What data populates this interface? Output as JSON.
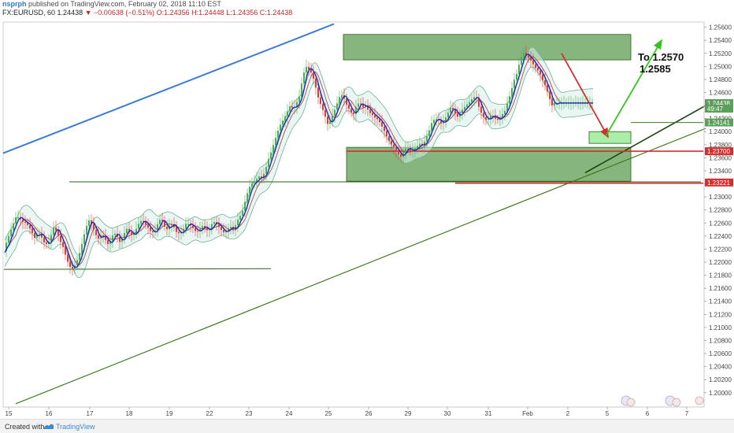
{
  "header": {
    "username": "nsprph",
    "published": "published on TradingView.com, February 02, 2018 11:10 EST",
    "symbol": "FX:EURUSD, 60",
    "last": "1.24438",
    "change": "−0.00638 (−0.51%)",
    "ohlc": "O:1.24356 H:1.24448 L:1.24356 C:1.24438"
  },
  "footer": {
    "created_with": "Created with",
    "brand": "TradingView"
  },
  "chart_data": {
    "type": "candlestick",
    "symbol": "FX:EURUSD",
    "interval": "60",
    "ylim": [
      1.1978,
      1.2568
    ],
    "y_ticks": [
      "1.25600",
      "1.25400",
      "1.25200",
      "1.25000",
      "1.24800",
      "1.24600",
      "1.24400",
      "1.24200",
      "1.24000",
      "1.23800",
      "1.23600",
      "1.23400",
      "1.23200",
      "1.23000",
      "1.22800",
      "1.22600",
      "1.22400",
      "1.22200",
      "1.22000",
      "1.21800",
      "1.21600",
      "1.21400",
      "1.21200",
      "1.21000",
      "1.20800",
      "1.20600",
      "1.20400",
      "1.20200",
      "1.20000"
    ],
    "x_ticks": [
      "15",
      "16",
      "17",
      "18",
      "19",
      "22",
      "23",
      "24",
      "25",
      "26",
      "29",
      "30",
      "31",
      "Feb",
      "2",
      "5",
      "6",
      "7"
    ],
    "price_labels": [
      {
        "text": "1.24438",
        "value": 1.24438,
        "color": "#5c9e5c"
      },
      {
        "text": "49:47",
        "value": 1.24353,
        "color": "#5c9e5c"
      },
      {
        "text": "1.24141",
        "value": 1.24141,
        "color": "#5c9e5c"
      },
      {
        "text": "1.23700",
        "value": 1.237,
        "color": "#d32f2f"
      },
      {
        "text": "1.23221",
        "value": 1.23221,
        "color": "#d32f2f"
      }
    ],
    "annotations": [
      "To 1.2570",
      "1.2585"
    ],
    "price_path": [
      [
        0,
        1.2192
      ],
      [
        6,
        1.2215
      ],
      [
        10,
        1.2232
      ],
      [
        14,
        1.2245
      ],
      [
        18,
        1.2258
      ],
      [
        22,
        1.227
      ],
      [
        26,
        1.2268
      ],
      [
        30,
        1.2262
      ],
      [
        34,
        1.226
      ],
      [
        38,
        1.2255
      ],
      [
        42,
        1.2246
      ],
      [
        46,
        1.2236
      ],
      [
        50,
        1.2247
      ],
      [
        54,
        1.2239
      ],
      [
        58,
        1.2229
      ],
      [
        62,
        1.2227
      ],
      [
        66,
        1.224
      ],
      [
        70,
        1.2255
      ],
      [
        74,
        1.2245
      ],
      [
        78,
        1.2232
      ],
      [
        82,
        1.2222
      ],
      [
        86,
        1.2205
      ],
      [
        90,
        1.2193
      ],
      [
        94,
        1.219
      ],
      [
        98,
        1.2198
      ],
      [
        102,
        1.2212
      ],
      [
        106,
        1.223
      ],
      [
        110,
        1.225
      ],
      [
        114,
        1.2265
      ],
      [
        118,
        1.2258
      ],
      [
        122,
        1.2245
      ],
      [
        126,
        1.2235
      ],
      [
        130,
        1.2242
      ],
      [
        134,
        1.2238
      ],
      [
        138,
        1.2227
      ],
      [
        142,
        1.2233
      ],
      [
        146,
        1.2246
      ],
      [
        150,
        1.224
      ],
      [
        154,
        1.223
      ],
      [
        158,
        1.224
      ],
      [
        162,
        1.2252
      ],
      [
        166,
        1.2245
      ],
      [
        170,
        1.224
      ],
      [
        174,
        1.225
      ],
      [
        178,
        1.226
      ],
      [
        182,
        1.2265
      ],
      [
        186,
        1.2258
      ],
      [
        190,
        1.2252
      ],
      [
        194,
        1.2245
      ],
      [
        198,
        1.2247
      ],
      [
        202,
        1.226
      ],
      [
        206,
        1.2268
      ],
      [
        210,
        1.2255
      ],
      [
        214,
        1.225
      ],
      [
        218,
        1.226
      ],
      [
        222,
        1.2255
      ],
      [
        226,
        1.2245
      ],
      [
        230,
        1.2244
      ],
      [
        234,
        1.225
      ],
      [
        238,
        1.226
      ],
      [
        242,
        1.2258
      ],
      [
        246,
        1.2253
      ],
      [
        250,
        1.2247
      ],
      [
        254,
        1.2248
      ],
      [
        258,
        1.2256
      ],
      [
        262,
        1.2252
      ],
      [
        266,
        1.2247
      ],
      [
        270,
        1.2258
      ],
      [
        274,
        1.2262
      ],
      [
        278,
        1.2256
      ],
      [
        282,
        1.225
      ],
      [
        286,
        1.2245
      ],
      [
        290,
        1.225
      ],
      [
        294,
        1.2255
      ],
      [
        298,
        1.2248
      ],
      [
        302,
        1.2262
      ],
      [
        306,
        1.227
      ],
      [
        310,
        1.228
      ],
      [
        314,
        1.23
      ],
      [
        318,
        1.2315
      ],
      [
        322,
        1.2322
      ],
      [
        326,
        1.2325
      ],
      [
        330,
        1.2332
      ],
      [
        334,
        1.2328
      ],
      [
        338,
        1.234
      ],
      [
        342,
        1.2356
      ],
      [
        346,
        1.237
      ],
      [
        350,
        1.2385
      ],
      [
        354,
        1.24
      ],
      [
        358,
        1.2412
      ],
      [
        362,
        1.242
      ],
      [
        366,
        1.243
      ],
      [
        370,
        1.244
      ],
      [
        374,
        1.2435
      ],
      [
        378,
        1.2444
      ],
      [
        382,
        1.2455
      ],
      [
        386,
        1.2485
      ],
      [
        390,
        1.25
      ],
      [
        394,
        1.2495
      ],
      [
        398,
        1.2488
      ],
      [
        402,
        1.247
      ],
      [
        406,
        1.245
      ],
      [
        410,
        1.2438
      ],
      [
        414,
        1.2425
      ],
      [
        418,
        1.241
      ],
      [
        422,
        1.242
      ],
      [
        426,
        1.2432
      ],
      [
        430,
        1.2445
      ],
      [
        434,
        1.2458
      ],
      [
        438,
        1.2452
      ],
      [
        442,
        1.244
      ],
      [
        446,
        1.2432
      ],
      [
        450,
        1.2425
      ],
      [
        454,
        1.244
      ],
      [
        458,
        1.2445
      ],
      [
        462,
        1.2437
      ],
      [
        466,
        1.244
      ],
      [
        470,
        1.243
      ],
      [
        474,
        1.2426
      ],
      [
        478,
        1.2421
      ],
      [
        482,
        1.2418
      ],
      [
        486,
        1.2409
      ],
      [
        490,
        1.24
      ],
      [
        494,
        1.2389
      ],
      [
        498,
        1.2381
      ],
      [
        502,
        1.2375
      ],
      [
        506,
        1.2368
      ],
      [
        510,
        1.236
      ],
      [
        514,
        1.237
      ],
      [
        518,
        1.2377
      ],
      [
        522,
        1.237
      ],
      [
        526,
        1.2372
      ],
      [
        530,
        1.2376
      ],
      [
        534,
        1.2382
      ],
      [
        538,
        1.2378
      ],
      [
        542,
        1.2389
      ],
      [
        546,
        1.24
      ],
      [
        550,
        1.2415
      ],
      [
        554,
        1.242
      ],
      [
        558,
        1.2418
      ],
      [
        562,
        1.2412
      ],
      [
        566,
        1.2418
      ],
      [
        570,
        1.2428
      ],
      [
        574,
        1.2438
      ],
      [
        578,
        1.2431
      ],
      [
        582,
        1.2422
      ],
      [
        586,
        1.243
      ],
      [
        590,
        1.2436
      ],
      [
        594,
        1.2441
      ],
      [
        598,
        1.2446
      ],
      [
        602,
        1.2452
      ],
      [
        606,
        1.2454
      ],
      [
        610,
        1.2436
      ],
      [
        614,
        1.2425
      ],
      [
        618,
        1.2418
      ],
      [
        622,
        1.242
      ],
      [
        626,
        1.2427
      ],
      [
        630,
        1.242
      ],
      [
        634,
        1.2418
      ],
      [
        638,
        1.2425
      ],
      [
        642,
        1.243
      ],
      [
        646,
        1.2445
      ],
      [
        650,
        1.246
      ],
      [
        654,
        1.2478
      ],
      [
        658,
        1.249
      ],
      [
        662,
        1.251
      ],
      [
        666,
        1.2522
      ],
      [
        670,
        1.2516
      ],
      [
        674,
        1.2512
      ],
      [
        678,
        1.2504
      ],
      [
        682,
        1.2497
      ],
      [
        686,
        1.2492
      ],
      [
        690,
        1.248
      ],
      [
        694,
        1.247
      ],
      [
        698,
        1.2456
      ],
      [
        702,
        1.244
      ],
      [
        706,
        1.2444
      ]
    ],
    "bollinger_width": 0.0018,
    "zones": [
      {
        "x0": 436,
        "x1": 801,
        "y_top": 1.2549,
        "y_bot": 1.251,
        "fill": "#5e9e52"
      },
      {
        "x0": 440,
        "x1": 801,
        "y_top": 1.2376,
        "y_bot": 1.2324,
        "fill": "#5e9e52"
      },
      {
        "x0": 748,
        "x1": 801,
        "y_top": 1.24,
        "y_bot": 1.2382,
        "fill": "#8fe88a"
      }
    ],
    "lines": [
      {
        "x0": 4,
        "v0": 1.2367,
        "x1": 424,
        "v1": 1.2565,
        "color": "#3a7bd5",
        "w": 2
      },
      {
        "x0": 20,
        "v0": 1.1983,
        "x1": 896,
        "v1": 1.2405,
        "color": "#3f7a1e",
        "w": 1.2
      },
      {
        "x0": 743,
        "v0": 1.2337,
        "x1": 896,
        "v1": 1.244,
        "color": "#1d4410",
        "w": 1.6
      },
      {
        "x0": 88,
        "v0": 1.2323,
        "x1": 890,
        "v1": 1.2323,
        "color": "#2e5e18",
        "w": 1
      },
      {
        "x0": 5,
        "v0": 1.2189,
        "x1": 344,
        "v1": 1.219,
        "color": "#2e5e18",
        "w": 1
      },
      {
        "x0": 440,
        "v0": 1.237,
        "x1": 893,
        "v1": 1.237,
        "color": "#d32f2f",
        "w": 1.6
      },
      {
        "x0": 578,
        "v0": 1.2321,
        "x1": 893,
        "v1": 1.2321,
        "color": "#d32f2f",
        "w": 1.6
      },
      {
        "x0": 801,
        "v0": 1.2414,
        "x1": 893,
        "v1": 1.2414,
        "color": "#3f7a1e",
        "w": 1
      }
    ],
    "arrows": [
      {
        "x0": 713,
        "v0": 1.252,
        "x1": 772,
        "v1": 1.2392,
        "color": "#d32f2f"
      },
      {
        "x0": 769,
        "v0": 1.2393,
        "x1": 840,
        "v1": 1.254,
        "color": "#33c41f"
      }
    ]
  }
}
